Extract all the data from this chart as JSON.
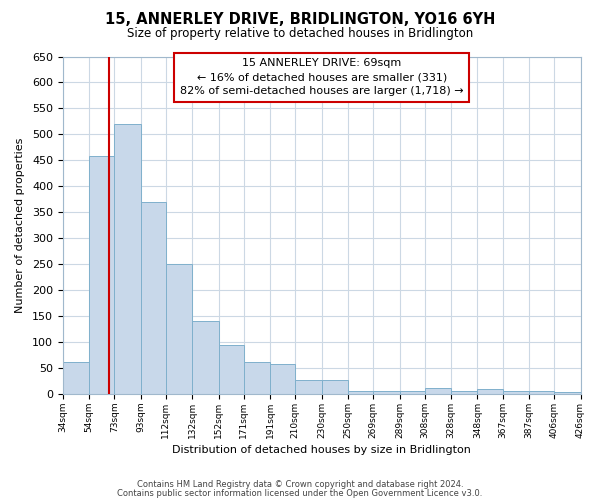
{
  "title": "15, ANNERLEY DRIVE, BRIDLINGTON, YO16 6YH",
  "subtitle": "Size of property relative to detached houses in Bridlington",
  "xlabel": "Distribution of detached houses by size in Bridlington",
  "ylabel": "Number of detached properties",
  "bar_edges": [
    34,
    54,
    73,
    93,
    112,
    132,
    152,
    171,
    191,
    210,
    230,
    250,
    269,
    289,
    308,
    328,
    348,
    367,
    387,
    406,
    426
  ],
  "bar_heights": [
    62,
    458,
    520,
    370,
    250,
    140,
    95,
    62,
    58,
    28,
    28,
    5,
    5,
    5,
    12,
    5,
    10,
    5,
    5,
    3
  ],
  "bar_color": "#c8d8ea",
  "bar_edge_color": "#7fb0cc",
  "property_line_x": 69,
  "property_line_color": "#cc0000",
  "ylim": [
    0,
    650
  ],
  "yticks": [
    0,
    50,
    100,
    150,
    200,
    250,
    300,
    350,
    400,
    450,
    500,
    550,
    600,
    650
  ],
  "xtick_labels": [
    "34sqm",
    "54sqm",
    "73sqm",
    "93sqm",
    "112sqm",
    "132sqm",
    "152sqm",
    "171sqm",
    "191sqm",
    "210sqm",
    "230sqm",
    "250sqm",
    "269sqm",
    "289sqm",
    "308sqm",
    "328sqm",
    "348sqm",
    "367sqm",
    "387sqm",
    "406sqm",
    "426sqm"
  ],
  "annotation_title": "15 ANNERLEY DRIVE: 69sqm",
  "annotation_line1": "← 16% of detached houses are smaller (331)",
  "annotation_line2": "82% of semi-detached houses are larger (1,718) →",
  "annotation_box_color": "#ffffff",
  "annotation_box_edge": "#cc0000",
  "footer_line1": "Contains HM Land Registry data © Crown copyright and database right 2024.",
  "footer_line2": "Contains public sector information licensed under the Open Government Licence v3.0.",
  "background_color": "#ffffff",
  "grid_color": "#ccd8e4"
}
